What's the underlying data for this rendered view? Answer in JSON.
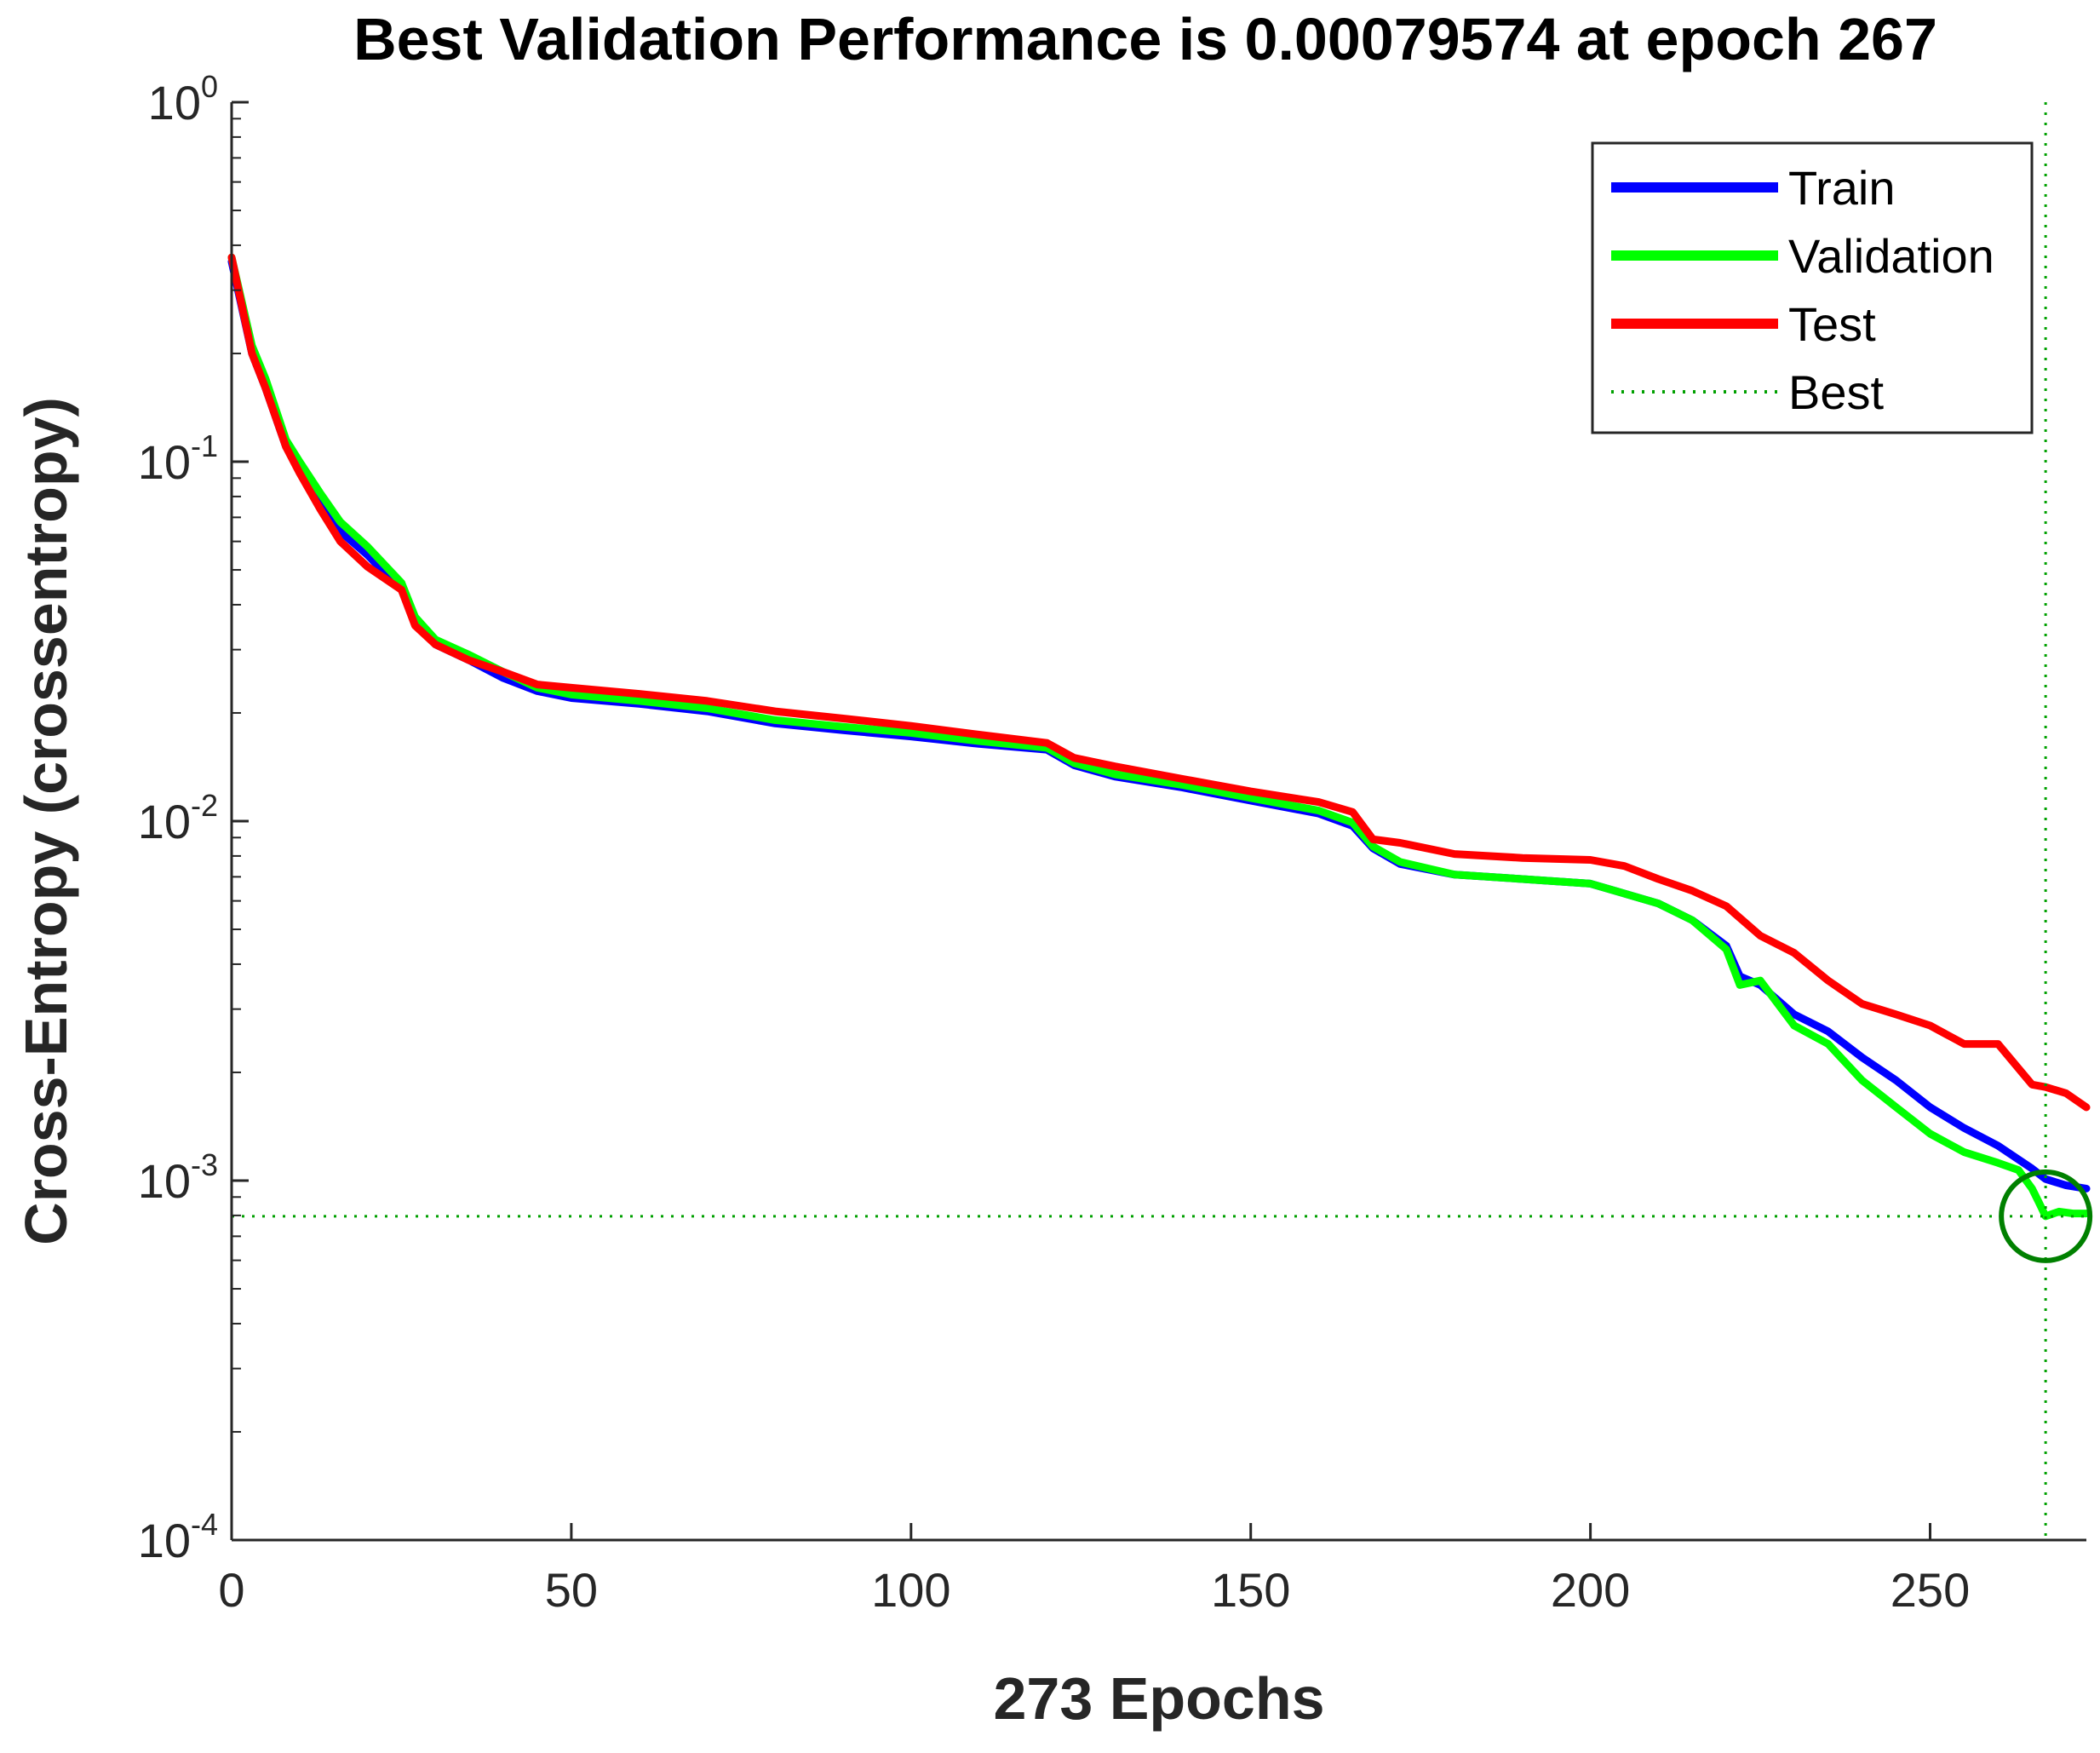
{
  "chart_data": {
    "type": "line",
    "title": "Best Validation Performance is 0.00079574 at epoch 267",
    "xlabel": "273 Epochs",
    "ylabel": "Cross-Entropy  (crossentropy)",
    "xlim": [
      0,
      273
    ],
    "ylim": [
      0.0001,
      1
    ],
    "yscale": "log",
    "x_ticks": [
      0,
      50,
      100,
      150,
      200,
      250
    ],
    "y_ticks": [
      {
        "base": "10",
        "exp": "0",
        "value": 1
      },
      {
        "base": "10",
        "exp": "-1",
        "value": 0.1
      },
      {
        "base": "10",
        "exp": "-2",
        "value": 0.01
      },
      {
        "base": "10",
        "exp": "-3",
        "value": 0.001
      },
      {
        "base": "10",
        "exp": "-4",
        "value": 0.0001
      }
    ],
    "legend_position": "top-right",
    "grid": false,
    "series": [
      {
        "name": "Train",
        "color": "#0000ff",
        "x": [
          0,
          3,
          5,
          8,
          10,
          13,
          16,
          20,
          25,
          27,
          30,
          35,
          40,
          45,
          50,
          60,
          70,
          80,
          90,
          100,
          110,
          120,
          124,
          130,
          140,
          150,
          160,
          165,
          168,
          172,
          180,
          190,
          200,
          210,
          215,
          220,
          222,
          225,
          230,
          235,
          240,
          245,
          250,
          255,
          260,
          265,
          267,
          270,
          273
        ],
        "values": [
          0.36,
          0.2,
          0.16,
          0.11,
          0.095,
          0.078,
          0.064,
          0.055,
          0.044,
          0.036,
          0.031,
          0.028,
          0.025,
          0.023,
          0.022,
          0.0212,
          0.0202,
          0.0187,
          0.0179,
          0.0172,
          0.0164,
          0.0158,
          0.0143,
          0.0133,
          0.0124,
          0.0114,
          0.0105,
          0.0097,
          0.0084,
          0.0076,
          0.0071,
          0.0069,
          0.0067,
          0.0059,
          0.0053,
          0.0045,
          0.0037,
          0.0035,
          0.0029,
          0.0026,
          0.0022,
          0.0019,
          0.0016,
          0.0014,
          0.00125,
          0.00108,
          0.00101,
          0.00097,
          0.00095
        ]
      },
      {
        "name": "Validation",
        "color": "#00ff00",
        "x": [
          0,
          3,
          5,
          8,
          10,
          13,
          16,
          20,
          25,
          27,
          30,
          35,
          40,
          45,
          50,
          60,
          70,
          80,
          90,
          100,
          110,
          120,
          124,
          130,
          140,
          150,
          160,
          165,
          168,
          172,
          180,
          190,
          200,
          210,
          215,
          220,
          222,
          225,
          230,
          235,
          240,
          245,
          250,
          255,
          260,
          263,
          265,
          266,
          267,
          269,
          271,
          273
        ],
        "values": [
          0.37,
          0.21,
          0.17,
          0.115,
          0.1,
          0.082,
          0.068,
          0.058,
          0.046,
          0.037,
          0.032,
          0.029,
          0.026,
          0.0235,
          0.0225,
          0.0216,
          0.0206,
          0.0191,
          0.0183,
          0.0176,
          0.0167,
          0.016,
          0.0145,
          0.0135,
          0.0126,
          0.0116,
          0.0107,
          0.0099,
          0.0085,
          0.0077,
          0.0071,
          0.0069,
          0.0067,
          0.0059,
          0.0053,
          0.0044,
          0.0035,
          0.0036,
          0.0027,
          0.0024,
          0.0019,
          0.0016,
          0.00135,
          0.0012,
          0.00112,
          0.00107,
          0.00095,
          0.00087,
          0.00079574,
          0.00082,
          0.00081,
          0.00081
        ]
      },
      {
        "name": "Test",
        "color": "#ff0000",
        "x": [
          0,
          3,
          5,
          8,
          10,
          13,
          16,
          20,
          25,
          27,
          30,
          35,
          40,
          45,
          50,
          60,
          70,
          80,
          90,
          100,
          110,
          120,
          124,
          130,
          140,
          150,
          160,
          165,
          168,
          172,
          180,
          190,
          200,
          205,
          210,
          215,
          220,
          225,
          230,
          235,
          240,
          245,
          250,
          255,
          260,
          265,
          267,
          270,
          273
        ],
        "values": [
          0.37,
          0.2,
          0.16,
          0.11,
          0.093,
          0.074,
          0.06,
          0.051,
          0.044,
          0.035,
          0.031,
          0.028,
          0.026,
          0.024,
          0.0235,
          0.0226,
          0.0216,
          0.0202,
          0.0193,
          0.0184,
          0.0174,
          0.0165,
          0.015,
          0.0142,
          0.0131,
          0.0121,
          0.0113,
          0.0106,
          0.0089,
          0.0087,
          0.0081,
          0.0079,
          0.0078,
          0.0075,
          0.0069,
          0.0064,
          0.0058,
          0.0048,
          0.0043,
          0.0036,
          0.0031,
          0.0029,
          0.0027,
          0.0024,
          0.0024,
          0.00185,
          0.00182,
          0.00175,
          0.0016
        ]
      }
    ],
    "best": {
      "name": "Best",
      "epoch": 267,
      "value": 0.00079574,
      "color": "#00a000"
    }
  }
}
